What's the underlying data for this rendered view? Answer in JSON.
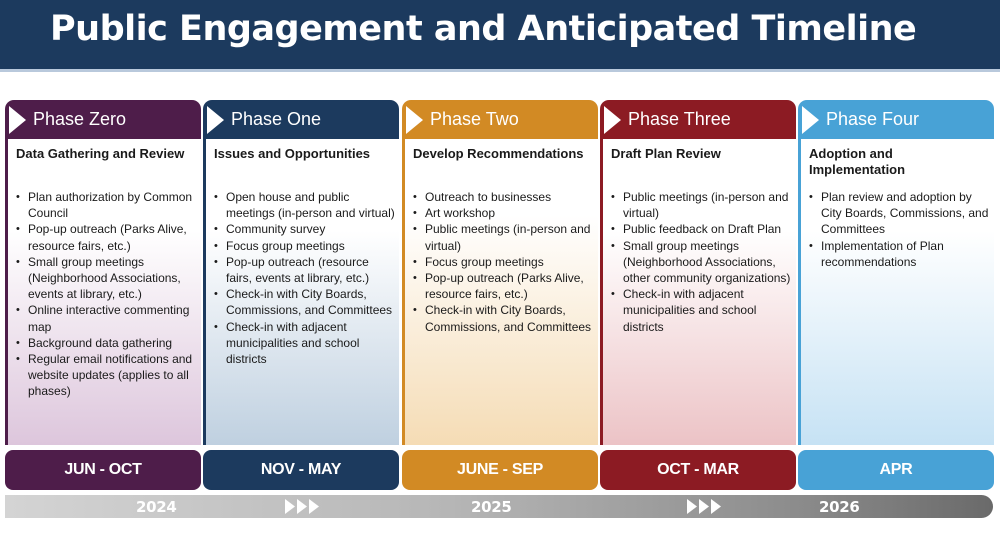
{
  "title": "Public Engagement and Anticipated Timeline",
  "colors": {
    "title_bg": "#1c3a5e",
    "phase_zero": "#4e1d4a",
    "phase_one": "#1c3a5e",
    "phase_two": "#d28a24",
    "phase_three": "#8c1b23",
    "phase_four": "#48a2d6"
  },
  "phases": [
    {
      "name": "Phase Zero",
      "heading": "Data Gathering and Review",
      "items": [
        "Plan authorization by Common Council",
        "Pop-up outreach (Parks Alive, resource fairs, etc.)",
        "Small group meetings (Neighborhood Associations, events at library, etc.)",
        "Online interactive commenting map",
        "Background data gathering",
        "Regular email notifications and website updates (applies to all phases)"
      ],
      "dates": "JUN - OCT"
    },
    {
      "name": "Phase One",
      "heading": "Issues and Opportunities",
      "items": [
        "Open house and public meetings (in-person and virtual)",
        "Community survey",
        "Focus group meetings",
        "Pop-up outreach (resource fairs, events at library, etc.)",
        "Check-in with City Boards, Commissions, and Committees",
        "Check-in with adjacent municipalities and school districts"
      ],
      "dates": "NOV - MAY"
    },
    {
      "name": "Phase Two",
      "heading": "Develop Recommendations",
      "items": [
        "Outreach to businesses",
        "Art workshop",
        "Public meetings (in-person and virtual)",
        "Focus group meetings",
        "Pop-up outreach (Parks Alive, resource fairs, etc.)",
        "Check-in with City Boards, Commissions, and Committees"
      ],
      "dates": "JUNE - SEP"
    },
    {
      "name": "Phase Three",
      "heading": "Draft Plan Review",
      "items": [
        "Public meetings (in-person and virtual)",
        "Public feedback on Draft Plan",
        "Small group meetings (Neighborhood Associations, other community organizations)",
        "Check-in with adjacent municipalities and school districts"
      ],
      "dates": "OCT - MAR"
    },
    {
      "name": "Phase Four",
      "heading": "Adoption and Implementation",
      "items": [
        "Plan review and adoption by City Boards, Commissions, and Committees",
        "Implementation of Plan recommendations"
      ],
      "dates": "APR"
    }
  ],
  "timeline": {
    "years": [
      "2024",
      "2025",
      "2026"
    ]
  }
}
